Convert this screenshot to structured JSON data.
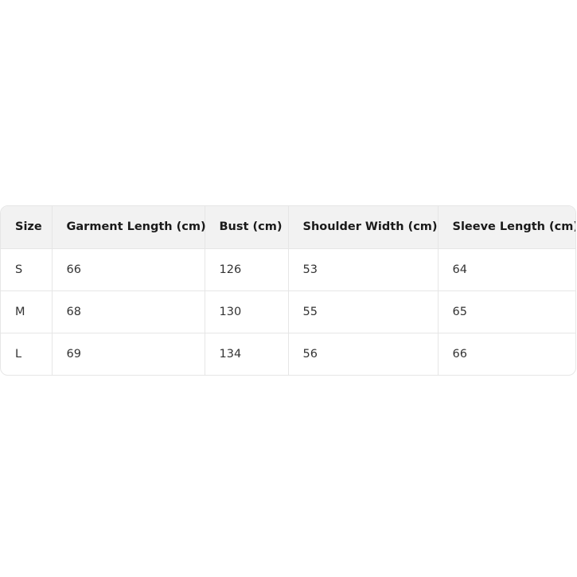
{
  "table": {
    "headers": [
      "Size",
      "Garment Length (cm)",
      "Bust (cm)",
      "Shoulder Width (cm)",
      "Sleeve Length (cm)"
    ],
    "rows": [
      [
        "S",
        "66",
        "126",
        "53",
        "64"
      ],
      [
        "M",
        "68",
        "130",
        "55",
        "65"
      ],
      [
        "L",
        "69",
        "134",
        "56",
        "66"
      ]
    ]
  }
}
